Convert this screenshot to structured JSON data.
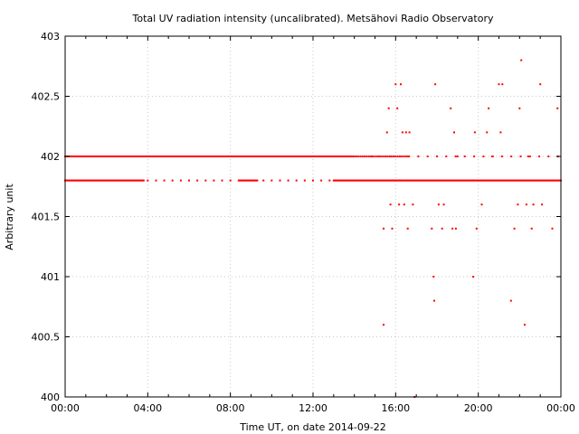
{
  "chart_data": {
    "type": "scatter",
    "title": "Total UV radiation intensity (uncalibrated). Metsähovi Radio Observatory",
    "xlabel": "Time UT, on date 2014-09-22",
    "ylabel": "Arbitrary unit",
    "xlim": [
      "00:00",
      "24:00"
    ],
    "ylim": [
      400,
      403
    ],
    "x_ticks": [
      "00:00",
      "04:00",
      "08:00",
      "12:00",
      "16:00",
      "20:00",
      "00:00"
    ],
    "y_ticks": [
      "400",
      "400.5",
      "401",
      "401.5",
      "402",
      "402.5",
      "403"
    ],
    "grid": true,
    "marker_color": "#ff0000",
    "series": [
      {
        "values_description_free": true,
        "baseline_levels": [
          401.8,
          402.0
        ],
        "points": [
          [
            "15:25",
            401.4
          ],
          [
            "15:35",
            402.2
          ],
          [
            "15:40",
            402.4
          ],
          [
            "15:45",
            401.6
          ],
          [
            "15:50",
            401.4
          ],
          [
            "16:00",
            402.6
          ],
          [
            "16:05",
            402.4
          ],
          [
            "16:10",
            401.6
          ],
          [
            "16:15",
            402.6
          ],
          [
            "16:20",
            402.2
          ],
          [
            "16:25",
            401.6
          ],
          [
            "16:30",
            402.2
          ],
          [
            "16:35",
            401.4
          ],
          [
            "16:40",
            402.2
          ],
          [
            "16:50",
            401.6
          ],
          [
            "17:45",
            401.4
          ],
          [
            "17:50",
            401.0
          ],
          [
            "17:52",
            400.8
          ],
          [
            "17:55",
            402.6
          ],
          [
            "18:05",
            401.6
          ],
          [
            "18:15",
            401.4
          ],
          [
            "18:20",
            401.6
          ],
          [
            "18:40",
            402.4
          ],
          [
            "18:45",
            401.4
          ],
          [
            "18:50",
            402.2
          ],
          [
            "18:55",
            401.4
          ],
          [
            "19:00",
            402.0
          ],
          [
            "19:45",
            401.0
          ],
          [
            "19:50",
            402.2
          ],
          [
            "19:55",
            401.4
          ],
          [
            "20:10",
            401.6
          ],
          [
            "20:25",
            402.2
          ],
          [
            "20:30",
            402.4
          ],
          [
            "20:40",
            402.0
          ],
          [
            "21:00",
            402.6
          ],
          [
            "21:05",
            402.2
          ],
          [
            "21:10",
            402.6
          ],
          [
            "21:35",
            400.8
          ],
          [
            "21:45",
            401.4
          ],
          [
            "21:55",
            401.6
          ],
          [
            "22:00",
            402.4
          ],
          [
            "22:05",
            402.8
          ],
          [
            "22:15",
            400.6
          ],
          [
            "22:20",
            401.6
          ],
          [
            "22:25",
            402.0
          ],
          [
            "22:35",
            401.4
          ],
          [
            "22:40",
            401.6
          ],
          [
            "23:00",
            402.6
          ],
          [
            "23:05",
            401.6
          ],
          [
            "23:35",
            401.4
          ],
          [
            "23:50",
            402.4
          ],
          [
            "15:25",
            400.6
          ],
          [
            "16:55",
            400.0
          ]
        ]
      }
    ]
  }
}
